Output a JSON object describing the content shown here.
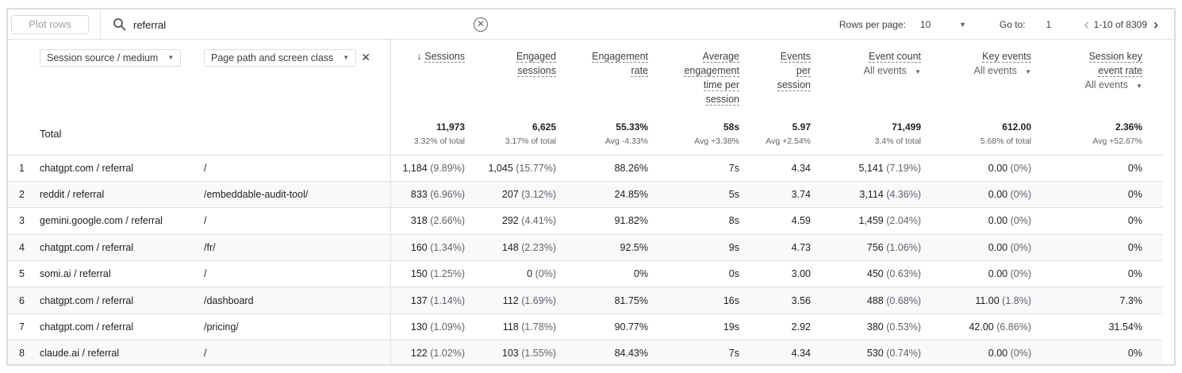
{
  "toolbar": {
    "plot_rows": "Plot rows",
    "search_value": "referral",
    "rows_per_page_label": "Rows per page:",
    "rows_per_page": "10",
    "go_to_label": "Go to:",
    "go_to": "1",
    "range": "1-10 of 8309"
  },
  "dimensions": [
    {
      "label": "Session source / medium"
    },
    {
      "label": "Page path and screen class"
    }
  ],
  "metrics": [
    {
      "lines": [
        "Sessions"
      ],
      "sorted": true
    },
    {
      "lines": [
        "Engaged",
        "sessions"
      ]
    },
    {
      "lines": [
        "Engagement",
        "rate"
      ]
    },
    {
      "lines": [
        "Average",
        "engagement",
        "time per",
        "session"
      ]
    },
    {
      "lines": [
        "Events",
        "per",
        "session"
      ]
    },
    {
      "lines": [
        "Event count"
      ],
      "filter": "All events"
    },
    {
      "lines": [
        "Key events"
      ],
      "filter": "All events"
    },
    {
      "lines": [
        "Session key",
        "event rate"
      ],
      "filter": "All events"
    }
  ],
  "totals": {
    "label": "Total",
    "values": [
      [
        "11,973",
        "3.32% of total"
      ],
      [
        "6,625",
        "3.17% of total"
      ],
      [
        "55.33%",
        "Avg -4.33%"
      ],
      [
        "58s",
        "Avg +3.38%"
      ],
      [
        "5.97",
        "Avg +2.54%"
      ],
      [
        "71,499",
        "3.4% of total"
      ],
      [
        "612.00",
        "5.68% of total"
      ],
      [
        "2.36%",
        "Avg +52.67%"
      ]
    ]
  },
  "rows": [
    {
      "i": "1",
      "source": "chatgpt.com / referral",
      "path": "/",
      "v": [
        [
          "1,184",
          "(9.89%)"
        ],
        [
          "1,045",
          "(15.77%)"
        ],
        [
          "88.26%",
          ""
        ],
        [
          "7s",
          ""
        ],
        [
          "4.34",
          ""
        ],
        [
          "5,141",
          "(7.19%)"
        ],
        [
          "0.00",
          "(0%)"
        ],
        [
          "0%",
          ""
        ]
      ]
    },
    {
      "i": "2",
      "source": "reddit / referral",
      "path": "/embeddable-audit-tool/",
      "v": [
        [
          "833",
          "(6.96%)"
        ],
        [
          "207",
          "(3.12%)"
        ],
        [
          "24.85%",
          ""
        ],
        [
          "5s",
          ""
        ],
        [
          "3.74",
          ""
        ],
        [
          "3,114",
          "(4.36%)"
        ],
        [
          "0.00",
          "(0%)"
        ],
        [
          "0%",
          ""
        ]
      ]
    },
    {
      "i": "3",
      "source": "gemini.google.com / referral",
      "path": "/",
      "v": [
        [
          "318",
          "(2.66%)"
        ],
        [
          "292",
          "(4.41%)"
        ],
        [
          "91.82%",
          ""
        ],
        [
          "8s",
          ""
        ],
        [
          "4.59",
          ""
        ],
        [
          "1,459",
          "(2.04%)"
        ],
        [
          "0.00",
          "(0%)"
        ],
        [
          "0%",
          ""
        ]
      ]
    },
    {
      "i": "4",
      "source": "chatgpt.com / referral",
      "path": "/fr/",
      "v": [
        [
          "160",
          "(1.34%)"
        ],
        [
          "148",
          "(2.23%)"
        ],
        [
          "92.5%",
          ""
        ],
        [
          "9s",
          ""
        ],
        [
          "4.73",
          ""
        ],
        [
          "756",
          "(1.06%)"
        ],
        [
          "0.00",
          "(0%)"
        ],
        [
          "0%",
          ""
        ]
      ]
    },
    {
      "i": "5",
      "source": "somi.ai / referral",
      "path": "/",
      "v": [
        [
          "150",
          "(1.25%)"
        ],
        [
          "0",
          "(0%)"
        ],
        [
          "0%",
          ""
        ],
        [
          "0s",
          ""
        ],
        [
          "3.00",
          ""
        ],
        [
          "450",
          "(0.63%)"
        ],
        [
          "0.00",
          "(0%)"
        ],
        [
          "0%",
          ""
        ]
      ]
    },
    {
      "i": "6",
      "source": "chatgpt.com / referral",
      "path": "/dashboard",
      "v": [
        [
          "137",
          "(1.14%)"
        ],
        [
          "112",
          "(1.69%)"
        ],
        [
          "81.75%",
          ""
        ],
        [
          "16s",
          ""
        ],
        [
          "3.56",
          ""
        ],
        [
          "488",
          "(0.68%)"
        ],
        [
          "11.00",
          "(1.8%)"
        ],
        [
          "7.3%",
          ""
        ]
      ]
    },
    {
      "i": "7",
      "source": "chatgpt.com / referral",
      "path": "/pricing/",
      "v": [
        [
          "130",
          "(1.09%)"
        ],
        [
          "118",
          "(1.78%)"
        ],
        [
          "90.77%",
          ""
        ],
        [
          "19s",
          ""
        ],
        [
          "2.92",
          ""
        ],
        [
          "380",
          "(0.53%)"
        ],
        [
          "42.00",
          "(6.86%)"
        ],
        [
          "31.54%",
          ""
        ]
      ]
    },
    {
      "i": "8",
      "source": "claude.ai / referral",
      "path": "/",
      "v": [
        [
          "122",
          "(1.02%)"
        ],
        [
          "103",
          "(1.55%)"
        ],
        [
          "84.43%",
          ""
        ],
        [
          "7s",
          ""
        ],
        [
          "4.34",
          ""
        ],
        [
          "530",
          "(0.74%)"
        ],
        [
          "0.00",
          "(0%)"
        ],
        [
          "0%",
          ""
        ]
      ]
    }
  ]
}
